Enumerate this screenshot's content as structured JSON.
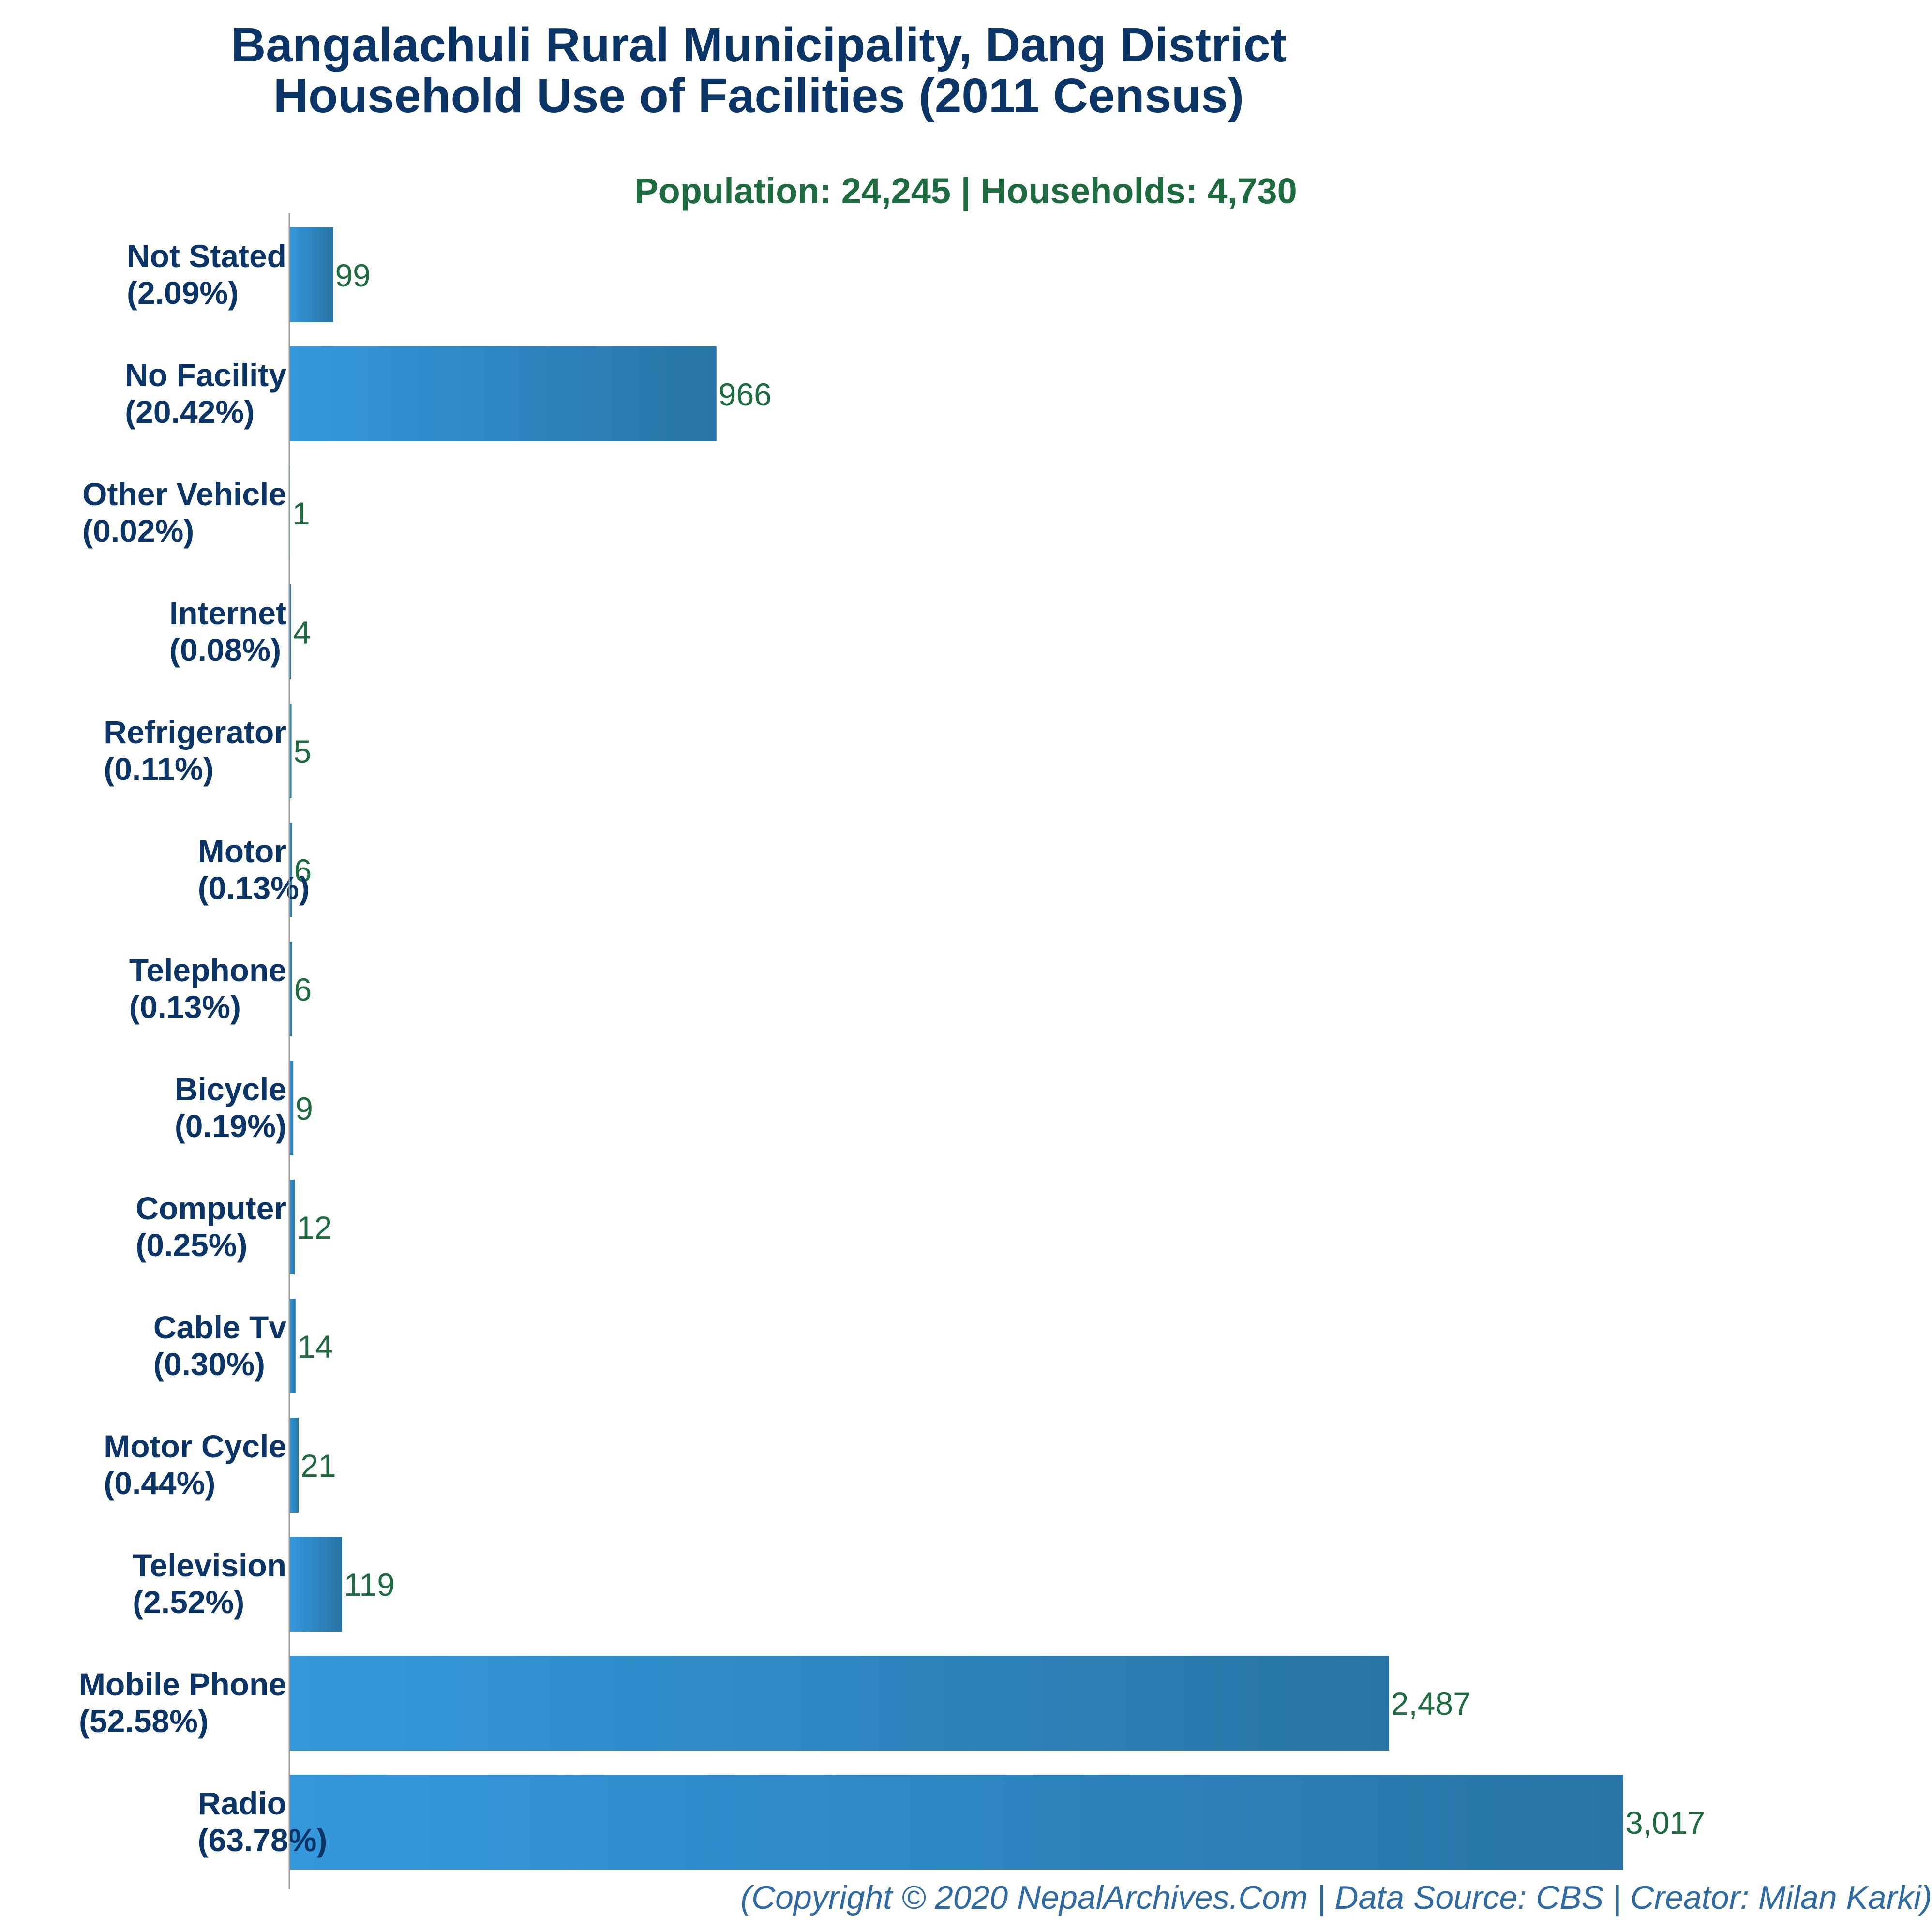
{
  "chart_data": {
    "type": "bar",
    "orientation": "horizontal",
    "title_line1": "Bangalachuli Rural Municipality, Dang District",
    "title_line2": "Household Use of Facilities (2011 Census)",
    "subtitle": "Population: 24,245 | Households: 4,730",
    "categories": [
      {
        "name": "Not Stated",
        "pct": "(2.09%)",
        "value": 99,
        "value_label": "99"
      },
      {
        "name": "No Facility",
        "pct": "(20.42%)",
        "value": 966,
        "value_label": "966"
      },
      {
        "name": "Other Vehicle",
        "pct": "(0.02%)",
        "value": 1,
        "value_label": "1"
      },
      {
        "name": "Internet",
        "pct": "(0.08%)",
        "value": 4,
        "value_label": "4"
      },
      {
        "name": "Refrigerator",
        "pct": "(0.11%)",
        "value": 5,
        "value_label": "5"
      },
      {
        "name": "Motor",
        "pct": "(0.13%)",
        "value": 6,
        "value_label": "6"
      },
      {
        "name": "Telephone",
        "pct": "(0.13%)",
        "value": 6,
        "value_label": "6"
      },
      {
        "name": "Bicycle",
        "pct": "(0.19%)",
        "value": 9,
        "value_label": "9"
      },
      {
        "name": "Computer",
        "pct": "(0.25%)",
        "value": 12,
        "value_label": "12"
      },
      {
        "name": "Cable Tv",
        "pct": "(0.30%)",
        "value": 14,
        "value_label": "14"
      },
      {
        "name": "Motor Cycle",
        "pct": "(0.44%)",
        "value": 21,
        "value_label": "21"
      },
      {
        "name": "Television",
        "pct": "(2.52%)",
        "value": 119,
        "value_label": "119"
      },
      {
        "name": "Mobile Phone",
        "pct": "(52.58%)",
        "value": 2487,
        "value_label": "2,487"
      },
      {
        "name": "Radio",
        "pct": "(63.78%)",
        "value": 3017,
        "value_label": "3,017"
      }
    ],
    "xlim": [
      0,
      3017
    ],
    "grid": false,
    "legend": "none",
    "bar_color_start": "#3498db",
    "bar_color_end": "#2874a6",
    "axis_color": "#999999"
  },
  "footer": "(Copyright © 2020 NepalArchives.Com | Data Source: CBS | Creator: Milan Karki)"
}
